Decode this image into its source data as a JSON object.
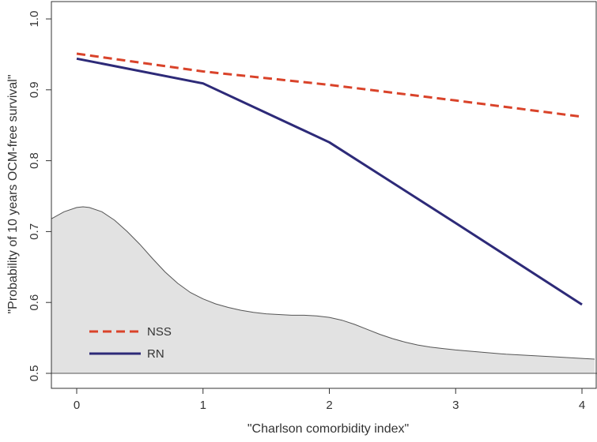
{
  "chart_data": {
    "type": "line",
    "title": "",
    "xlabel": "\"Charlson comorbidity index\"",
    "ylabel": "\"Probability of 10 years OCM-free survival\"",
    "xlim": [
      -0.2,
      4.1
    ],
    "ylim": [
      0.485,
      1.025
    ],
    "x_ticks": [
      0,
      1,
      2,
      3,
      4
    ],
    "x_tick_labels": [
      "0",
      "1",
      "2",
      "3",
      "4"
    ],
    "y_ticks": [
      0.5,
      0.6,
      0.7,
      0.8,
      0.9,
      1.0
    ],
    "y_tick_labels": [
      "0.5",
      "0.6",
      "0.7",
      "0.8",
      "0.9",
      "1.0"
    ],
    "grid": false,
    "legend_position": "bottom-left",
    "series": [
      {
        "name": "NSS",
        "style": "dashed",
        "color": "#d9432a",
        "x": [
          0,
          1,
          2,
          3,
          4
        ],
        "values": [
          0.951,
          0.926,
          0.907,
          0.885,
          0.862
        ]
      },
      {
        "name": "RN",
        "style": "solid",
        "color": "#2d2a78",
        "x": [
          0,
          1,
          2,
          3,
          4
        ],
        "values": [
          0.944,
          0.909,
          0.826,
          0.712,
          0.597
        ]
      }
    ],
    "density": {
      "color": "#e2e2e2",
      "baseline": 0.5,
      "x": [
        -0.2,
        -0.1,
        0,
        0.05,
        0.1,
        0.2,
        0.3,
        0.4,
        0.5,
        0.6,
        0.7,
        0.8,
        0.9,
        1.0,
        1.1,
        1.2,
        1.3,
        1.4,
        1.5,
        1.6,
        1.7,
        1.8,
        1.9,
        2.0,
        2.1,
        2.2,
        2.3,
        2.4,
        2.5,
        2.6,
        2.7,
        2.8,
        2.9,
        3.0,
        3.2,
        3.4,
        3.6,
        3.8,
        4.0,
        4.1
      ],
      "y": [
        0.718,
        0.728,
        0.734,
        0.735,
        0.734,
        0.728,
        0.716,
        0.7,
        0.682,
        0.662,
        0.643,
        0.627,
        0.614,
        0.605,
        0.598,
        0.593,
        0.589,
        0.586,
        0.584,
        0.583,
        0.582,
        0.582,
        0.581,
        0.579,
        0.575,
        0.569,
        0.562,
        0.555,
        0.549,
        0.544,
        0.54,
        0.537,
        0.535,
        0.533,
        0.53,
        0.527,
        0.525,
        0.523,
        0.521,
        0.52
      ]
    }
  }
}
